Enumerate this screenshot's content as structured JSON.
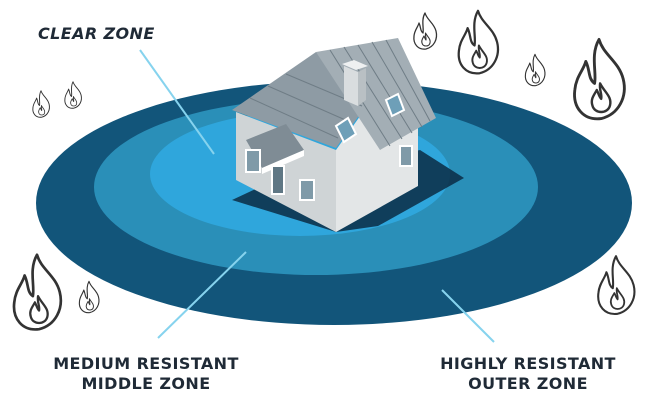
{
  "labels": {
    "clear_zone": "CLEAR ZONE",
    "middle_zone_line1": "MEDIUM RESISTANT",
    "middle_zone_line2": "MIDDLE ZONE",
    "outer_zone_line1": "HIGHLY RESISTANT",
    "outer_zone_line2": "OUTER ZONE"
  },
  "colors": {
    "outer_zone": "#12557a",
    "middle_zone": "#2a8fb8",
    "clear_zone": "#2fa6dc",
    "leader_line": "#86d3ee",
    "label_text": "#1f2a36",
    "flame_outline": "#333333"
  },
  "icons": [
    "flame-icon",
    "house-icon"
  ]
}
